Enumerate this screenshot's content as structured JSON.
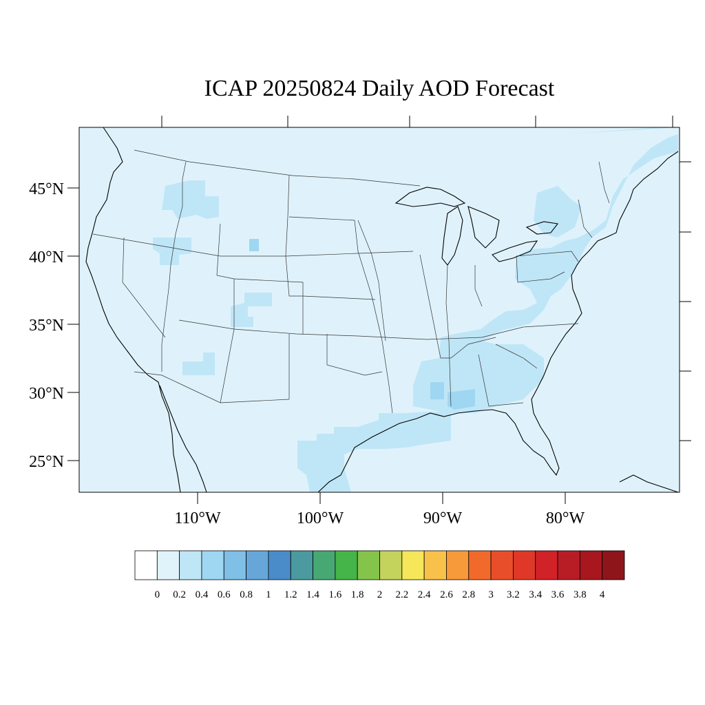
{
  "title": "ICAP 20250824 Daily AOD Forecast",
  "colors": {
    "background_aod": "#dff2fb",
    "coast": "#000000",
    "state_border": "#333333"
  },
  "lat_labels": [
    "45°N",
    "40°N",
    "35°N",
    "30°N",
    "25°N"
  ],
  "lon_labels": [
    "110°W",
    "100°W",
    "90°W",
    "80°W"
  ],
  "colorbar": {
    "levels": [
      "0",
      "0.2",
      "0.4",
      "0.6",
      "0.8",
      "1",
      "1.2",
      "1.4",
      "1.6",
      "1.8",
      "2",
      "2.2",
      "2.4",
      "2.6",
      "2.8",
      "3",
      "3.2",
      "3.4",
      "3.6",
      "3.8",
      "4"
    ],
    "colors": [
      "#ffffff",
      "#e0f3fb",
      "#bfe6f7",
      "#9fd7f2",
      "#80bfe6",
      "#67a6d9",
      "#4a8cc9",
      "#4a9a9f",
      "#47a873",
      "#45b549",
      "#84c44b",
      "#c4d35b",
      "#f6e65a",
      "#f8c24a",
      "#f79a3a",
      "#f26a2b",
      "#e94e2a",
      "#df3828",
      "#d02227",
      "#b81c25",
      "#a8171e",
      "#8e151a"
    ]
  },
  "aod_patches": {
    "level_0_2_to_0_4": "#bfe6f7",
    "level_0_4_to_0_6": "#9fd7f2"
  }
}
